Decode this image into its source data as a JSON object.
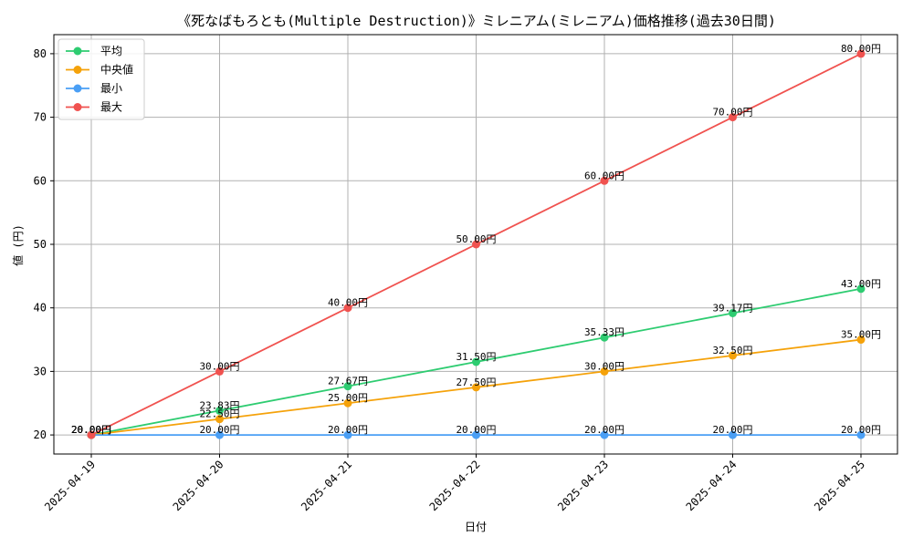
{
  "chart_data": {
    "type": "line",
    "title": "《死なばもろとも(Multiple Destruction)》ミレニアム(ミレニアム)価格推移(過去30日間)",
    "xlabel": "日付",
    "ylabel": "値 (円)",
    "categories": [
      "2025-04-19",
      "2025-04-20",
      "2025-04-21",
      "2025-04-22",
      "2025-04-23",
      "2025-04-24",
      "2025-04-25"
    ],
    "ylim": [
      17,
      83
    ],
    "yticks": [
      20,
      30,
      40,
      50,
      60,
      70,
      80
    ],
    "grid": true,
    "legend_position": "top-left",
    "value_suffix": "円",
    "series": [
      {
        "name": "平均",
        "color": "#2ecc71",
        "values": [
          20.0,
          23.83,
          27.67,
          31.5,
          35.33,
          39.17,
          43.0
        ]
      },
      {
        "name": "中央値",
        "color": "#f5a20a",
        "values": [
          20.0,
          22.5,
          25.0,
          27.5,
          30.0,
          32.5,
          35.0
        ]
      },
      {
        "name": "最小",
        "color": "#4a9ff5",
        "values": [
          20.0,
          20.0,
          20.0,
          20.0,
          20.0,
          20.0,
          20.0
        ]
      },
      {
        "name": "最大",
        "color": "#f0524f",
        "values": [
          20.0,
          30.0,
          40.0,
          50.0,
          60.0,
          70.0,
          80.0
        ]
      }
    ]
  }
}
